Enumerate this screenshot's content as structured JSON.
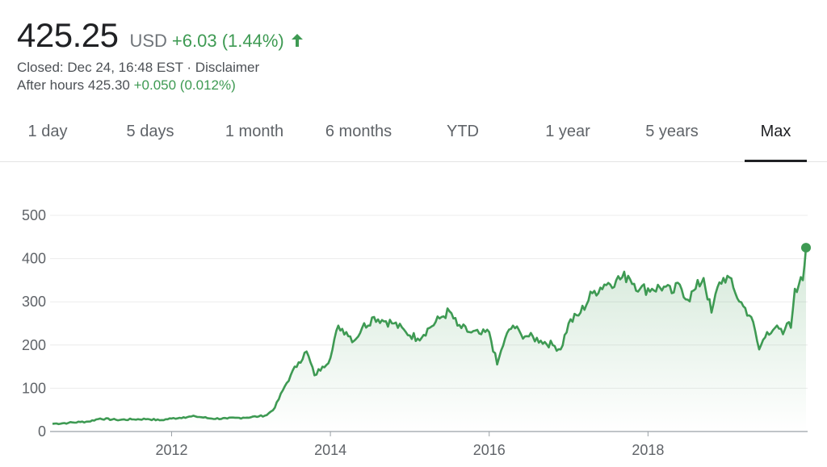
{
  "quote": {
    "price": "425.25",
    "currency": "USD",
    "change": "+6.03 (1.44%)",
    "closed_label": "Closed: Dec 24, 16:48 EST · Disclaimer",
    "after_hours_label": "After hours 425.30",
    "after_hours_change": "+0.050 (0.012%)",
    "up_color": "#3e9a53"
  },
  "tabs": [
    {
      "label": "1 day"
    },
    {
      "label": "5 days"
    },
    {
      "label": "1 month"
    },
    {
      "label": "6 months"
    },
    {
      "label": "YTD"
    },
    {
      "label": "1 year"
    },
    {
      "label": "5 years"
    },
    {
      "label": "Max",
      "active": true
    }
  ],
  "chart_data": {
    "type": "line",
    "title": "",
    "xlabel": "",
    "ylabel": "",
    "ylim": [
      0,
      500
    ],
    "xlim": [
      2010.5,
      2019.99
    ],
    "y_ticks": [
      "0",
      "100",
      "200",
      "300",
      "400",
      "500"
    ],
    "x_ticks": [
      "2012",
      "2014",
      "2016",
      "2018"
    ],
    "grid": true,
    "line_color": "#3e9a53",
    "series": [
      {
        "x": [
          2010.5,
          2010.7,
          2010.85,
          2010.95,
          2011.1,
          2011.3,
          2011.5,
          2011.7,
          2011.85,
          2012.0,
          2012.15,
          2012.3,
          2012.5,
          2012.7,
          2012.9,
          2013.1,
          2013.2,
          2013.3,
          2013.4,
          2013.5,
          2013.6,
          2013.7,
          2013.8,
          2013.9,
          2014.0,
          2014.1,
          2014.2,
          2014.3,
          2014.4,
          2014.55,
          2014.7,
          2014.8,
          2014.95,
          2015.1,
          2015.25,
          2015.4,
          2015.5,
          2015.6,
          2015.75,
          2015.9,
          2016.0,
          2016.1,
          2016.2,
          2016.3,
          2016.4,
          2016.5,
          2016.65,
          2016.8,
          2016.9,
          2017.0,
          2017.15,
          2017.3,
          2017.45,
          2017.6,
          2017.75,
          2017.9,
          2018.05,
          2018.2,
          2018.3,
          2018.4,
          2018.5,
          2018.6,
          2018.7,
          2018.8,
          2018.9,
          2019.0,
          2019.1,
          2019.2,
          2019.3,
          2019.4,
          2019.5,
          2019.6,
          2019.7,
          2019.75,
          2019.8,
          2019.85,
          2019.9,
          2019.95,
          2019.99
        ],
        "values": [
          18,
          20,
          22,
          23,
          30,
          27,
          28,
          29,
          26,
          30,
          33,
          35,
          30,
          30,
          32,
          35,
          38,
          55,
          95,
          130,
          160,
          185,
          130,
          150,
          170,
          245,
          230,
          210,
          240,
          265,
          255,
          250,
          230,
          215,
          240,
          265,
          278,
          245,
          230,
          225,
          230,
          155,
          215,
          245,
          225,
          220,
          210,
          200,
          190,
          250,
          275,
          320,
          340,
          350,
          360,
          330,
          330,
          335,
          320,
          340,
          305,
          330,
          355,
          275,
          345,
          360,
          320,
          290,
          265,
          190,
          230,
          240,
          225,
          250,
          240,
          330,
          340,
          350,
          425
        ]
      }
    ],
    "last_point_value": 425.25
  }
}
